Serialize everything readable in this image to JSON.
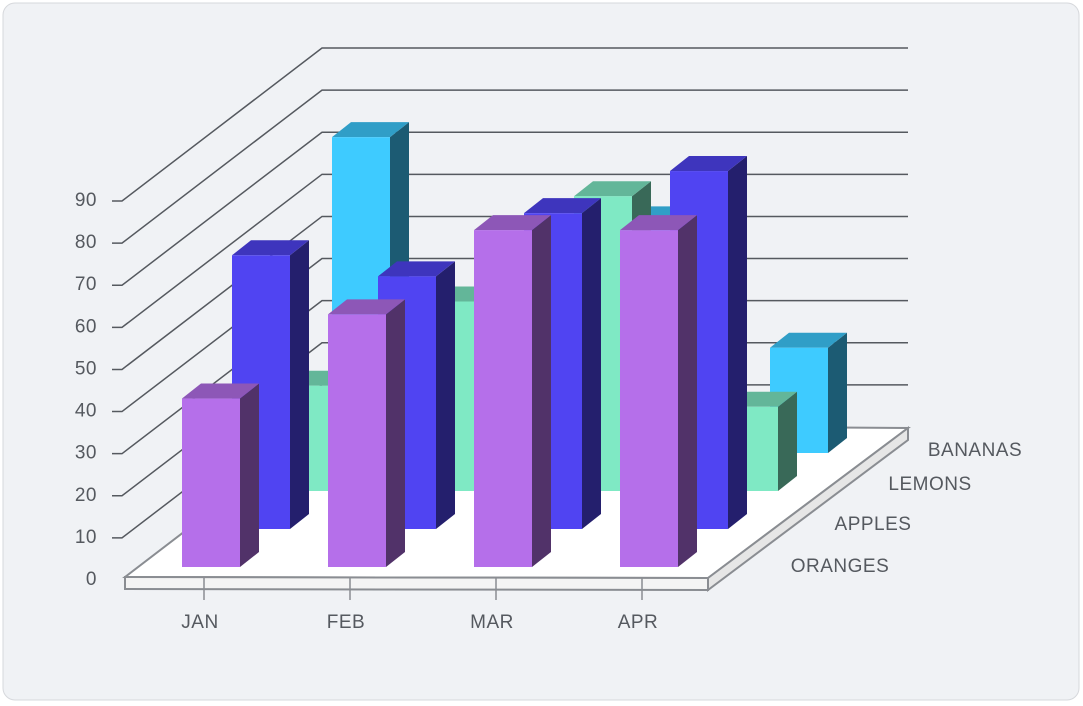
{
  "chart_data": {
    "type": "bar3d",
    "categories": [
      "JAN",
      "FEB",
      "MAR",
      "APR"
    ],
    "series": [
      {
        "name": "ORANGES",
        "color": "#b56fea",
        "values": [
          40,
          60,
          80,
          80
        ]
      },
      {
        "name": "APPLES",
        "color": "#5044f2",
        "values": [
          65,
          60,
          75,
          85
        ]
      },
      {
        "name": "LEMONS",
        "color": "#7fe9c4",
        "values": [
          25,
          45,
          70,
          20
        ]
      },
      {
        "name": "BANANAS",
        "color": "#3ecbff",
        "values": [
          75,
          40,
          55,
          25
        ]
      }
    ],
    "ylim": [
      0,
      90
    ],
    "yticks": [
      0,
      10,
      20,
      30,
      40,
      50,
      60,
      70,
      80,
      90
    ],
    "grid": true
  }
}
